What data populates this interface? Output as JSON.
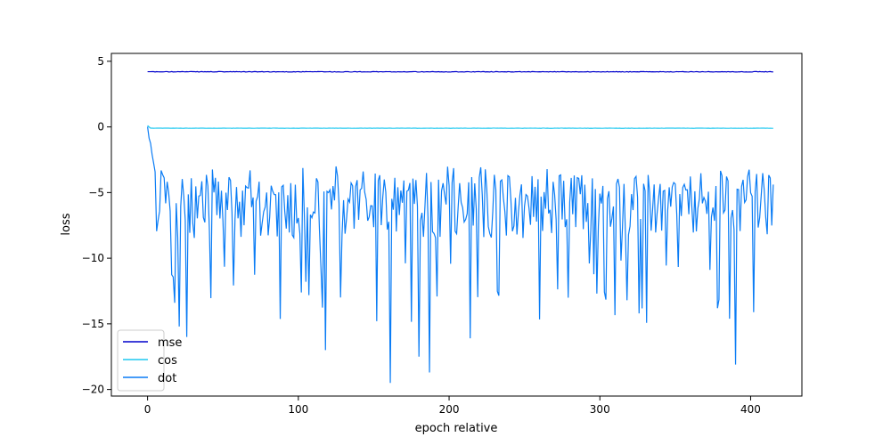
{
  "chart_data": {
    "type": "line",
    "title": "",
    "xlabel": "epoch relative",
    "ylabel": "loss",
    "xlim": [
      -24,
      434
    ],
    "ylim": [
      -20.5,
      5.6
    ],
    "x_ticks": [
      0,
      100,
      200,
      300,
      400
    ],
    "y_ticks": [
      5,
      0,
      -5,
      -10,
      -15,
      -20
    ],
    "grid": false,
    "legend_position": "lower-left",
    "n_points": 416,
    "series": [
      {
        "name": "mse",
        "color": "#0000cc",
        "values_summary": "approximately constant near 4.2 across all epochs",
        "level": 4.2
      },
      {
        "name": "cos",
        "color": "#1ec8f0",
        "values_summary": "starts near 0.1 then settles at about -0.1",
        "start": 0.1,
        "level": -0.1
      },
      {
        "name": "dot",
        "color": "#0a7cf5",
        "values_summary": "starts near 0, drops to about -2.5 within first few epochs, then fluctuates mainly between -3 and -10 with occasional dips to about -19.5",
        "start": 0.1,
        "mean_level": -6,
        "range": [
          -19.5,
          -2.8
        ],
        "notable_minima": [
          {
            "x": 18,
            "y": -13.4
          },
          {
            "x": 21,
            "y": -15.2
          },
          {
            "x": 26,
            "y": -16.0
          },
          {
            "x": 118,
            "y": -17.0
          },
          {
            "x": 161,
            "y": -19.5
          },
          {
            "x": 180,
            "y": -17.5
          },
          {
            "x": 187,
            "y": -18.7
          },
          {
            "x": 214,
            "y": -16.1
          },
          {
            "x": 390,
            "y": -18.1
          }
        ]
      }
    ]
  }
}
